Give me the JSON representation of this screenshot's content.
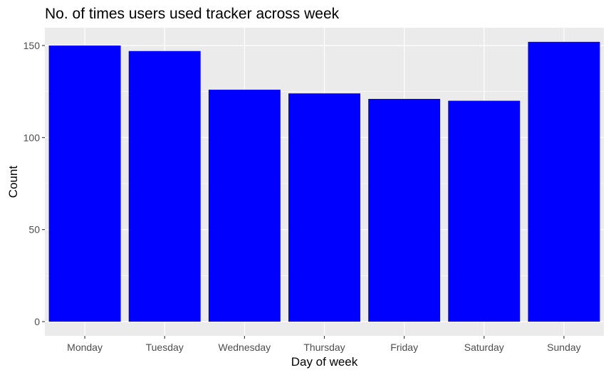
{
  "chart_data": {
    "type": "bar",
    "title": "No. of times users used tracker across week",
    "xlabel": "Day of week",
    "ylabel": "Count",
    "categories": [
      "Monday",
      "Tuesday",
      "Wednesday",
      "Thursday",
      "Friday",
      "Saturday",
      "Sunday"
    ],
    "values": [
      150,
      147,
      126,
      124,
      121,
      120,
      152
    ],
    "ylim": [
      0,
      160
    ],
    "yticks": [
      0,
      50,
      100,
      150
    ],
    "ytick_labels": [
      "0",
      "50",
      "100",
      "150"
    ],
    "grid": true,
    "bar_color": "#0000FF",
    "panel_color": "#EBEBEB",
    "grid_color": "#FFFFFF"
  }
}
